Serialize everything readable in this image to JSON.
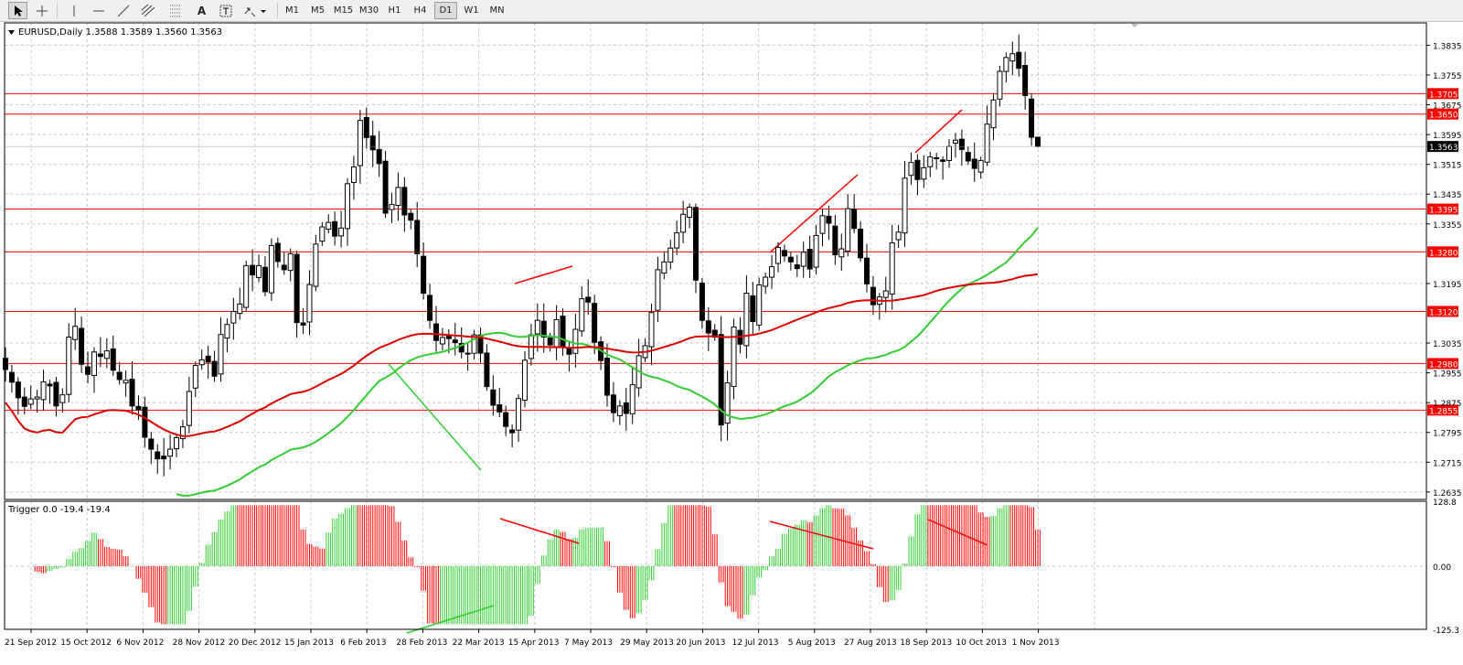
{
  "toolbar": {
    "timeframes": [
      "M1",
      "M5",
      "M15",
      "M30",
      "H1",
      "H4",
      "D1",
      "W1",
      "MN"
    ],
    "active_timeframe": "D1"
  },
  "main_chart": {
    "header": "EURUSD,Daily  1.3588 1.3589 1.3560 1.3563",
    "last_price_label": "1.3563",
    "price_ticks": [
      "1.3835",
      "1.3755",
      "1.3675",
      "1.3595",
      "1.3515",
      "1.3435",
      "1.3355",
      "1.3195",
      "1.3035",
      "1.2955",
      "1.2875",
      "1.2795",
      "1.2715",
      "1.2635"
    ],
    "horizontal_levels": [
      {
        "label": "1.3705",
        "value": 1.3705
      },
      {
        "label": "1.3650",
        "value": 1.365
      },
      {
        "label": "1.3395",
        "value": 1.3395
      },
      {
        "label": "1.3280",
        "value": 1.328
      },
      {
        "label": "1.3120",
        "value": 1.312
      },
      {
        "label": "1.2980",
        "value": 1.298
      },
      {
        "label": "1.2855",
        "value": 1.2855
      }
    ],
    "colors": {
      "level_line": "#ff0000",
      "label_bg": "#ff0000",
      "ma_fast": "#32cd32",
      "ma_slow": "#dd0000",
      "candle": "#000000",
      "grid": "#c8c8c8",
      "last_price_bg": "#000000"
    }
  },
  "indicator": {
    "header": "Trigger 0.0 -19.4 -19.4",
    "ticks": [
      "128.8",
      "0.00",
      "-125.3"
    ],
    "colors": {
      "positive": "#32cd32",
      "negative": "#ff0000"
    }
  },
  "date_axis": [
    "21 Sep 2012",
    "15 Oct 2012",
    "6 Nov 2012",
    "28 Nov 2012",
    "20 Dec 2012",
    "15 Jan 2013",
    "6 Feb 2013",
    "28 Feb 2013",
    "22 Mar 2013",
    "15 Apr 2013",
    "7 May 2013",
    "29 May 2013",
    "20 Jun 2013",
    "12 Jul 2013",
    "5 Aug 2013",
    "27 Aug 2013",
    "18 Sep 2013",
    "10 Oct 2013",
    "1 Nov 2013"
  ],
  "chart_data": {
    "type": "candlestick",
    "symbol": "EURUSD",
    "timeframe": "Daily",
    "last_bar": {
      "open": 1.3588,
      "high": 1.3589,
      "low": 1.356,
      "close": 1.3563
    },
    "ylim": [
      1.2615,
      1.3895
    ],
    "series": [
      {
        "values": [
          1.2964,
          1.293,
          1.2888,
          1.2865,
          1.2885,
          1.289,
          1.2931,
          1.292,
          1.2866,
          1.2896,
          1.3051,
          1.308,
          1.2978,
          1.2951,
          1.3011,
          1.2999,
          1.3014,
          1.2962,
          1.2937,
          1.2935,
          1.2866,
          1.2856,
          1.2782,
          1.275,
          1.2724,
          1.2724,
          1.275,
          1.2781,
          1.281,
          1.2905,
          1.2975,
          1.299,
          1.2984,
          1.2946,
          1.3058,
          1.3085,
          1.312,
          1.314,
          1.3243,
          1.3218,
          1.3243,
          1.3173,
          1.3297,
          1.3254,
          1.3232,
          1.3275,
          1.309,
          1.3083,
          1.3192,
          1.3301,
          1.3347,
          1.3359,
          1.3322,
          1.3344,
          1.3463,
          1.3508,
          1.3633,
          1.3587,
          1.3554,
          1.3517,
          1.3384,
          1.3407,
          1.3453,
          1.3379,
          1.3365,
          1.3275,
          1.3169,
          1.3096,
          1.3042,
          1.305,
          1.3047,
          1.3036,
          1.3011,
          1.3006,
          1.3057,
          1.3008,
          1.2918,
          1.2868,
          1.285,
          1.2811,
          1.2794,
          1.2886,
          1.2989,
          1.3057,
          1.3096,
          1.3051,
          1.303,
          1.3098,
          1.3025,
          1.3005,
          1.3072,
          1.3154,
          1.3145,
          1.3037,
          1.2988,
          1.2895,
          1.2848,
          1.2866,
          1.2846,
          1.2923,
          1.3001,
          1.3028,
          1.3117,
          1.3232,
          1.3253,
          1.329,
          1.3331,
          1.3381,
          1.34,
          1.3204,
          1.3096,
          1.3062,
          1.3051,
          1.2815,
          1.2928,
          1.3078,
          1.3032,
          1.3169,
          1.3093,
          1.3191,
          1.3212,
          1.324,
          1.3292,
          1.3269,
          1.3253,
          1.3235,
          1.3279,
          1.3234,
          1.3324,
          1.3377,
          1.3357,
          1.3272,
          1.3288,
          1.3396,
          1.3343,
          1.3264,
          1.3194,
          1.3138,
          1.3159,
          1.3175,
          1.3304,
          1.3333,
          1.3478,
          1.352,
          1.3474,
          1.3506,
          1.3535,
          1.3532,
          1.3523,
          1.3563,
          1.358,
          1.3555,
          1.3524,
          1.3504,
          1.3525,
          1.3623,
          1.3688,
          1.3765,
          1.3802,
          1.3812,
          1.3773,
          1.37,
          1.3588,
          1.3563
        ],
        "name": ""
      }
    ],
    "indicator_range": [
      -125.3,
      128.8
    ],
    "ma_fast_range": [
      1.2625,
      1.3345
    ],
    "ma_slow_range": [
      1.2785,
      1.322
    ]
  }
}
